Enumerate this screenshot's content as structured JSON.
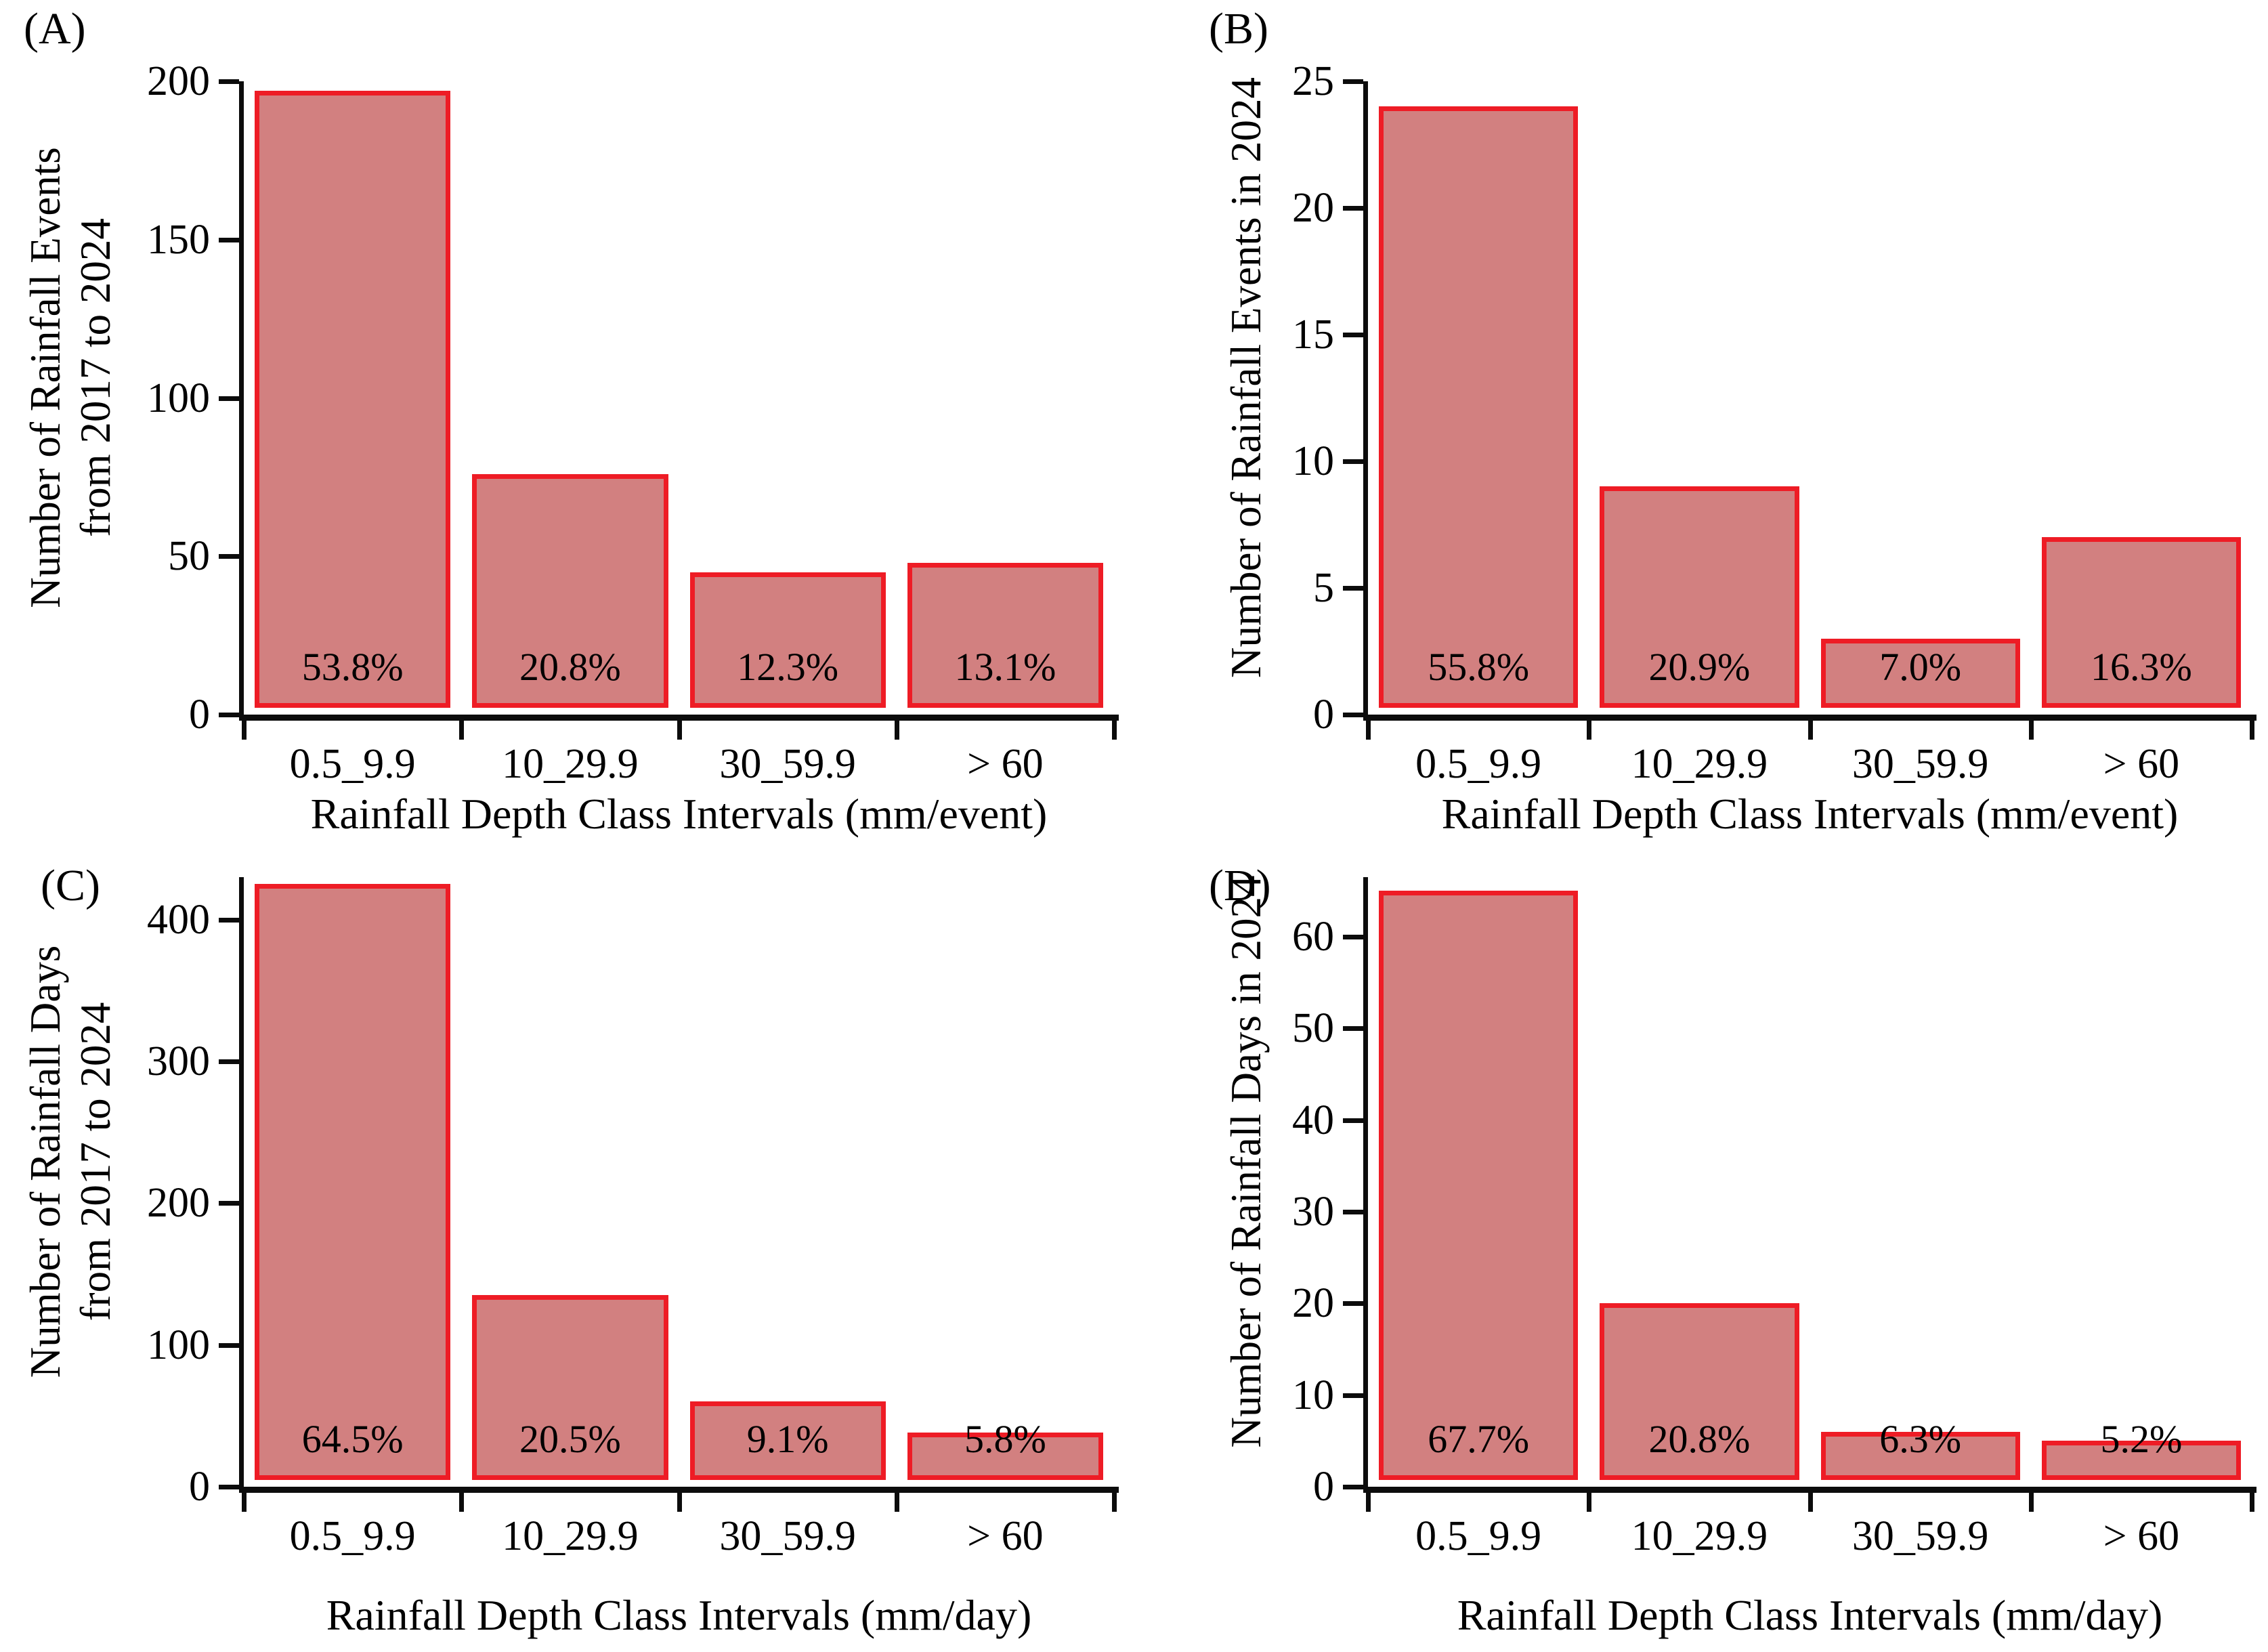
{
  "figure": {
    "bar_fill": "#d28080",
    "bar_border": "#ee1c25",
    "axis_color": "#0c0c0c",
    "text_color": "#000000"
  },
  "chart_data": [
    {
      "type": "bar",
      "panel_letter": "(A)",
      "ylabel_lines": [
        "Number of Rainfall Events",
        "from 2017 to 2024"
      ],
      "xlabel": "Rainfall Depth Class Intervals (mm/event)",
      "categories": [
        "0.5_9.9",
        "10_29.9",
        "30_59.9",
        "> 60"
      ],
      "values": [
        197,
        76,
        45,
        48
      ],
      "bar_labels": [
        "53.8%",
        "20.8%",
        "12.3%",
        "13.1%"
      ],
      "yticks": [
        0,
        50,
        100,
        150,
        200
      ],
      "ylim": [
        0,
        200
      ],
      "grid": false,
      "legend": "none"
    },
    {
      "type": "bar",
      "panel_letter": "(B)",
      "ylabel_lines": [
        "Number of Rainfall Events in 2024"
      ],
      "xlabel": "Rainfall Depth Class Intervals (mm/event)",
      "categories": [
        "0.5_9.9",
        "10_29.9",
        "30_59.9",
        "> 60"
      ],
      "values": [
        24,
        9,
        3,
        7
      ],
      "bar_labels": [
        "55.8%",
        "20.9%",
        "7.0%",
        "16.3%"
      ],
      "yticks": [
        0,
        5,
        10,
        15,
        20,
        25
      ],
      "ylim": [
        0,
        25
      ],
      "grid": false,
      "legend": "none"
    },
    {
      "type": "bar",
      "panel_letter": "(C)",
      "ylabel_lines": [
        "Number of Rainfall Days",
        "from 2017 to 2024"
      ],
      "xlabel": "Rainfall Depth Class Intervals (mm/day)",
      "categories": [
        "0.5_9.9",
        "10_29.9",
        "30_59.9",
        "> 60"
      ],
      "values": [
        425,
        135,
        60,
        38
      ],
      "bar_labels": [
        "64.5%",
        "20.5%",
        "9.1%",
        "5.8%"
      ],
      "yticks": [
        0,
        100,
        200,
        300,
        400
      ],
      "ylim": [
        0,
        430
      ],
      "grid": false,
      "legend": "none"
    },
    {
      "type": "bar",
      "panel_letter": "(D)",
      "ylabel_lines": [
        "Number of Rainfall Days in 2024"
      ],
      "xlabel": "Rainfall Depth Class Intervals (mm/day)",
      "categories": [
        "0.5_9.9",
        "10_29.9",
        "30_59.9",
        "> 60"
      ],
      "values": [
        65,
        20,
        6,
        5
      ],
      "bar_labels": [
        "67.7%",
        "20.8%",
        "6.3%",
        "5.2%"
      ],
      "yticks": [
        0,
        10,
        20,
        30,
        40,
        50,
        60
      ],
      "ylim": [
        0,
        66.5
      ],
      "grid": false,
      "legend": "none"
    }
  ]
}
